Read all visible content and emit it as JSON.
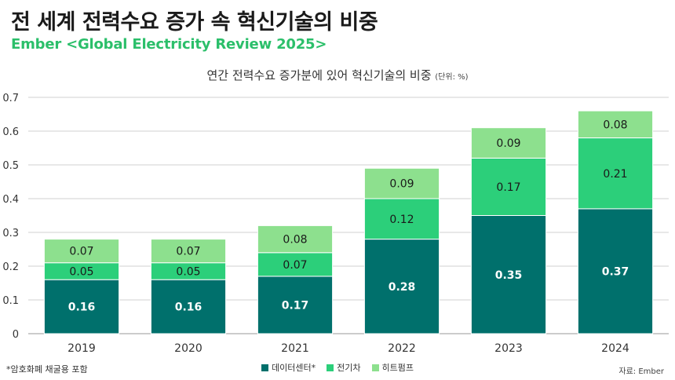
{
  "header": {
    "title": "전 세계 전력수요 증가 속 혁신기술의 비중",
    "subtitle": "Ember <Global Electricity Review 2025>"
  },
  "colors": {
    "accent": "#2bbf6a",
    "data_center": "#00706c",
    "ev": "#2ccf7a",
    "heat_pump": "#8de08e",
    "grid": "#d0d0d0",
    "bar_label_dark": "#ffffff",
    "bar_label_light": "#1a1a1a"
  },
  "footer": {
    "note": "*암호화폐 채굴용 포함",
    "source": "자료: Ember"
  },
  "chart_data": {
    "type": "bar",
    "stacked": true,
    "title": "연간 전력수요 증가분에 있어 혁신기술의 비중",
    "title_unit": "(단위: %)",
    "categories": [
      "2019",
      "2020",
      "2021",
      "2022",
      "2023",
      "2024"
    ],
    "series": [
      {
        "name": "데이터센터*",
        "color": "#00706c",
        "values": [
          0.16,
          0.16,
          0.17,
          0.28,
          0.35,
          0.37
        ]
      },
      {
        "name": "전기차",
        "color": "#2ccf7a",
        "values": [
          0.05,
          0.05,
          0.07,
          0.12,
          0.17,
          0.21
        ]
      },
      {
        "name": "히트펌프",
        "color": "#8de08e",
        "values": [
          0.07,
          0.07,
          0.08,
          0.09,
          0.09,
          0.08
        ]
      }
    ],
    "ylim": [
      0,
      0.7
    ],
    "yticks": [
      "0",
      "0.1",
      "0.2",
      "0.3",
      "0.4",
      "0.5",
      "0.6",
      "0.7"
    ],
    "grid": true,
    "legend_position": "bottom-center"
  }
}
